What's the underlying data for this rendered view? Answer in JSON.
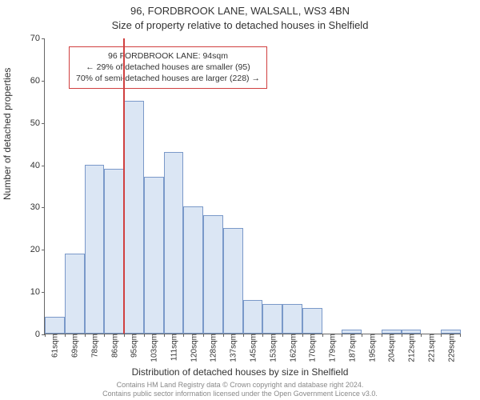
{
  "title_line1": "96, FORDBROOK LANE, WALSALL, WS3 4BN",
  "title_line2": "Size of property relative to detached houses in Shelfield",
  "ylabel": "Number of detached properties",
  "xlabel": "Distribution of detached houses by size in Shelfield",
  "footer_line1": "Contains HM Land Registry data © Crown copyright and database right 2024.",
  "footer_line2": "Contains public sector information licensed under the Open Government Licence v3.0.",
  "chart": {
    "type": "histogram",
    "ylim": [
      0,
      70
    ],
    "ytick_step": 10,
    "bar_fill": "#dbe6f4",
    "bar_border": "#7a99c9",
    "marker_color": "#d04040",
    "categories": [
      "61sqm",
      "69sqm",
      "78sqm",
      "86sqm",
      "95sqm",
      "103sqm",
      "111sqm",
      "120sqm",
      "128sqm",
      "137sqm",
      "145sqm",
      "153sqm",
      "162sqm",
      "170sqm",
      "179sqm",
      "187sqm",
      "195sqm",
      "204sqm",
      "212sqm",
      "221sqm",
      "229sqm"
    ],
    "values": [
      4,
      19,
      40,
      39,
      55,
      37,
      43,
      30,
      28,
      25,
      8,
      7,
      7,
      6,
      0,
      1,
      0,
      1,
      1,
      0,
      1
    ],
    "marker_index": 4,
    "annotation": {
      "line1": "96 FORDBROOK LANE: 94sqm",
      "line2": "← 29% of detached houses are smaller (95)",
      "line3": "70% of semi-detached houses are larger (228) →"
    }
  }
}
